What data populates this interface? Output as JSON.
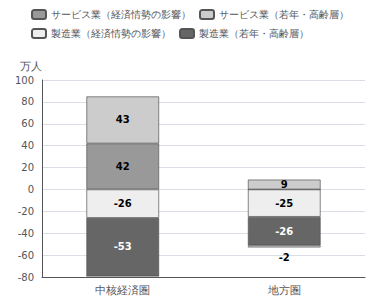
{
  "chart_data": {
    "type": "bar",
    "stacked": true,
    "data_labels": true,
    "legend": "top",
    "ylabel": "万人",
    "categories": [
      "中核経済圏",
      "地方圏"
    ],
    "series": [
      {
        "name": "サービス業（経済情勢の影響）",
        "color": "#999999",
        "values": [
          42,
          0
        ]
      },
      {
        "name": "サービス業（若年・高齢層）",
        "color": "#cccccc",
        "values": [
          43,
          9
        ]
      },
      {
        "name": "製造業（経済情勢の影響）",
        "color": "#eeeeee",
        "values": [
          -26,
          -25
        ]
      },
      {
        "name": "製造業（若年・高齢層）",
        "color": "#666666",
        "values": [
          -53,
          -26
        ]
      },
      {
        "color": "#cccccc",
        "values": [
          0,
          -2
        ]
      }
    ],
    "ylim": [
      -80,
      100
    ],
    "yticks": [
      -80,
      -60,
      -40,
      -20,
      0,
      20,
      40,
      60,
      80,
      100
    ]
  }
}
